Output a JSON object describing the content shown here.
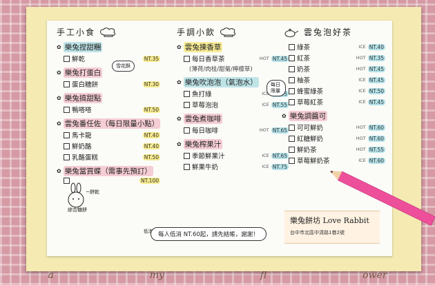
{
  "tablecloth": {
    "print": [
      "a",
      "my",
      "fl",
      "ower"
    ]
  },
  "col1": {
    "header": "手工小食",
    "sections": [
      {
        "title": "樂兔捏甜糰",
        "color": "teal",
        "items": [
          {
            "name": "鮮乾",
            "tag": "",
            "price": "NT.35",
            "price_color": "yellow",
            "sub": false
          }
        ]
      },
      {
        "title": "樂兔打蛋白",
        "color": "pink",
        "items": [
          {
            "name": "蛋白糖餅",
            "tag": "",
            "price": "NT.30",
            "price_color": "yellow",
            "sub": false
          }
        ]
      },
      {
        "title": "樂兔搞甜點",
        "color": "pink",
        "items": [
          {
            "name": "鴨嗒嗒",
            "tag": "",
            "price": "NT.50",
            "price_color": "yellow",
            "sub": false
          }
        ]
      },
      {
        "title": "雲兔番任佐（每日限量小點）",
        "color": "pink",
        "items": [
          {
            "name": "馬卡龍",
            "tag": "",
            "price": "NT.40",
            "price_color": "yellow",
            "sub": false
          },
          {
            "name": "鮮奶酪",
            "tag": "",
            "price": "NT.40",
            "price_color": "yellow",
            "sub": false
          },
          {
            "name": "乳酪蛋糕",
            "tag": "",
            "price": "NT.50",
            "price_color": "yellow",
            "sub": false
          }
        ]
      },
      {
        "title": "樂兔當買蝶（需事先預訂）",
        "color": "pink",
        "items": [
          {
            "name": "",
            "tag": "",
            "price": "NT.100",
            "price_color": "yellow",
            "sub": false
          }
        ]
      }
    ],
    "bubble": "雪花酥",
    "doodle_labels": [
      "~餅乾",
      "綜合糖餅"
    ]
  },
  "col2": {
    "header": "手調小飲",
    "sections": [
      {
        "title": "雲兔揀香草",
        "color": "yellow",
        "items": [
          {
            "name": "每日香草茶",
            "tag": "HOT",
            "price": "NT.45",
            "price_color": "teal",
            "sub": false
          },
          {
            "name": "(薄荷/肉桂/甜菊/檸檬草)",
            "tag": "",
            "price": "",
            "price_color": "",
            "sub": true
          }
        ]
      },
      {
        "title": "樂兔吹泡泡（氣泡水）",
        "color": "teal",
        "items": [
          {
            "name": "魚打綠",
            "tag": "ICE",
            "price": "NT.55",
            "price_color": "teal",
            "sub": false
          },
          {
            "name": "草莓泡泡",
            "tag": "ICE",
            "price": "NT.55",
            "price_color": "teal",
            "sub": false
          }
        ]
      },
      {
        "title": "雲兔煮咖啡",
        "color": "pink",
        "items": [
          {
            "name": "每日咖啡",
            "tag": "HOT",
            "price": "NT.65",
            "price_color": "teal",
            "sub": false
          }
        ]
      },
      {
        "title": "樂兔榨果汁",
        "color": "pink",
        "items": [
          {
            "name": "季節鮮果汁",
            "tag": "ICE",
            "price": "NT.65",
            "price_color": "teal",
            "sub": false
          },
          {
            "name": "鮮果牛奶",
            "tag": "ICE",
            "price": "NT.75",
            "price_color": "teal",
            "sub": false
          }
        ]
      }
    ],
    "bubble": "每日限量"
  },
  "col3": {
    "header": "雲兔泡好茶",
    "sections": [
      {
        "title": "",
        "color": "",
        "items": [
          {
            "name": "綠茶",
            "tag": "ICE",
            "price": "NT.40",
            "price_color": "teal",
            "sub": false
          },
          {
            "name": "紅茶",
            "tag": "HOT",
            "price": "NT.35",
            "price_color": "teal",
            "sub": false
          },
          {
            "name": "奶茶",
            "tag": "HOT",
            "price": "NT.45",
            "price_color": "teal",
            "sub": false
          },
          {
            "name": "柚茶",
            "tag": "ICE",
            "price": "NT.45",
            "price_color": "teal",
            "sub": false
          },
          {
            "name": "蜂蜜綠茶",
            "tag": "ICE",
            "price": "NT.50",
            "price_color": "teal",
            "sub": false
          },
          {
            "name": "草莓紅茶",
            "tag": "ICE",
            "price": "NT.45",
            "price_color": "teal",
            "sub": false
          }
        ]
      },
      {
        "title": "樂兔調醬可",
        "color": "pink",
        "items": [
          {
            "name": "可可鮮奶",
            "tag": "HOT",
            "price": "NT.60",
            "price_color": "teal",
            "sub": false
          },
          {
            "name": "紅糖鮮奶",
            "tag": "HOT",
            "price": "NT.60",
            "price_color": "teal",
            "sub": false
          },
          {
            "name": "鮮奶茶",
            "tag": "HOT",
            "price": "NT.55",
            "price_color": "teal",
            "sub": false
          },
          {
            "name": "草莓鮮奶茶",
            "tag": "ICE",
            "price": "NT.60",
            "price_color": "teal",
            "sub": false
          }
        ]
      }
    ]
  },
  "footer": {
    "lead": "低消",
    "note": "每人低消 NT.60起，請先結帳，謝謝！"
  },
  "brand": {
    "title": "樂兔餅坊 Love Rabbit",
    "address": "台中市北區中清路1巷2號"
  },
  "colors": {
    "highlight_pink": "#f0a0af",
    "highlight_teal": "#82cdd7",
    "highlight_yellow": "#f6e464",
    "pencil": "#ee4f9a",
    "frame": "#f4eab2"
  }
}
